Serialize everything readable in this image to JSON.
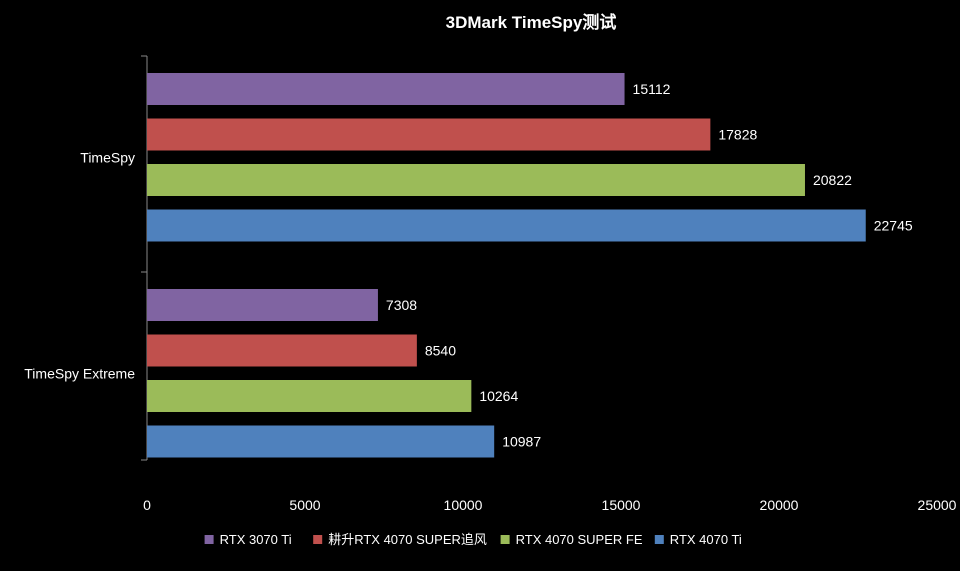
{
  "chart_data": {
    "type": "bar",
    "orientation": "horizontal",
    "title": "3DMark TimeSpy测试",
    "categories": [
      "TimeSpy",
      "TimeSpy Extreme"
    ],
    "series": [
      {
        "name": "RTX 3070 Ti",
        "color": "#8064A2",
        "values": [
          15112,
          7308
        ]
      },
      {
        "name": "耕升RTX 4070 SUPER追风",
        "color": "#C0504D",
        "values": [
          17828,
          8540
        ]
      },
      {
        "name": "RTX 4070 SUPER FE",
        "color": "#9BBB59",
        "values": [
          20822,
          10264
        ]
      },
      {
        "name": "RTX 4070 Ti",
        "color": "#4F81BD",
        "values": [
          22745,
          10987
        ]
      }
    ],
    "xlim": [
      0,
      25000
    ],
    "xticks": [
      0,
      5000,
      10000,
      15000,
      20000,
      25000
    ],
    "xlabel": "",
    "ylabel": "",
    "grid": false,
    "legend_position": "bottom",
    "data_labels": true
  }
}
